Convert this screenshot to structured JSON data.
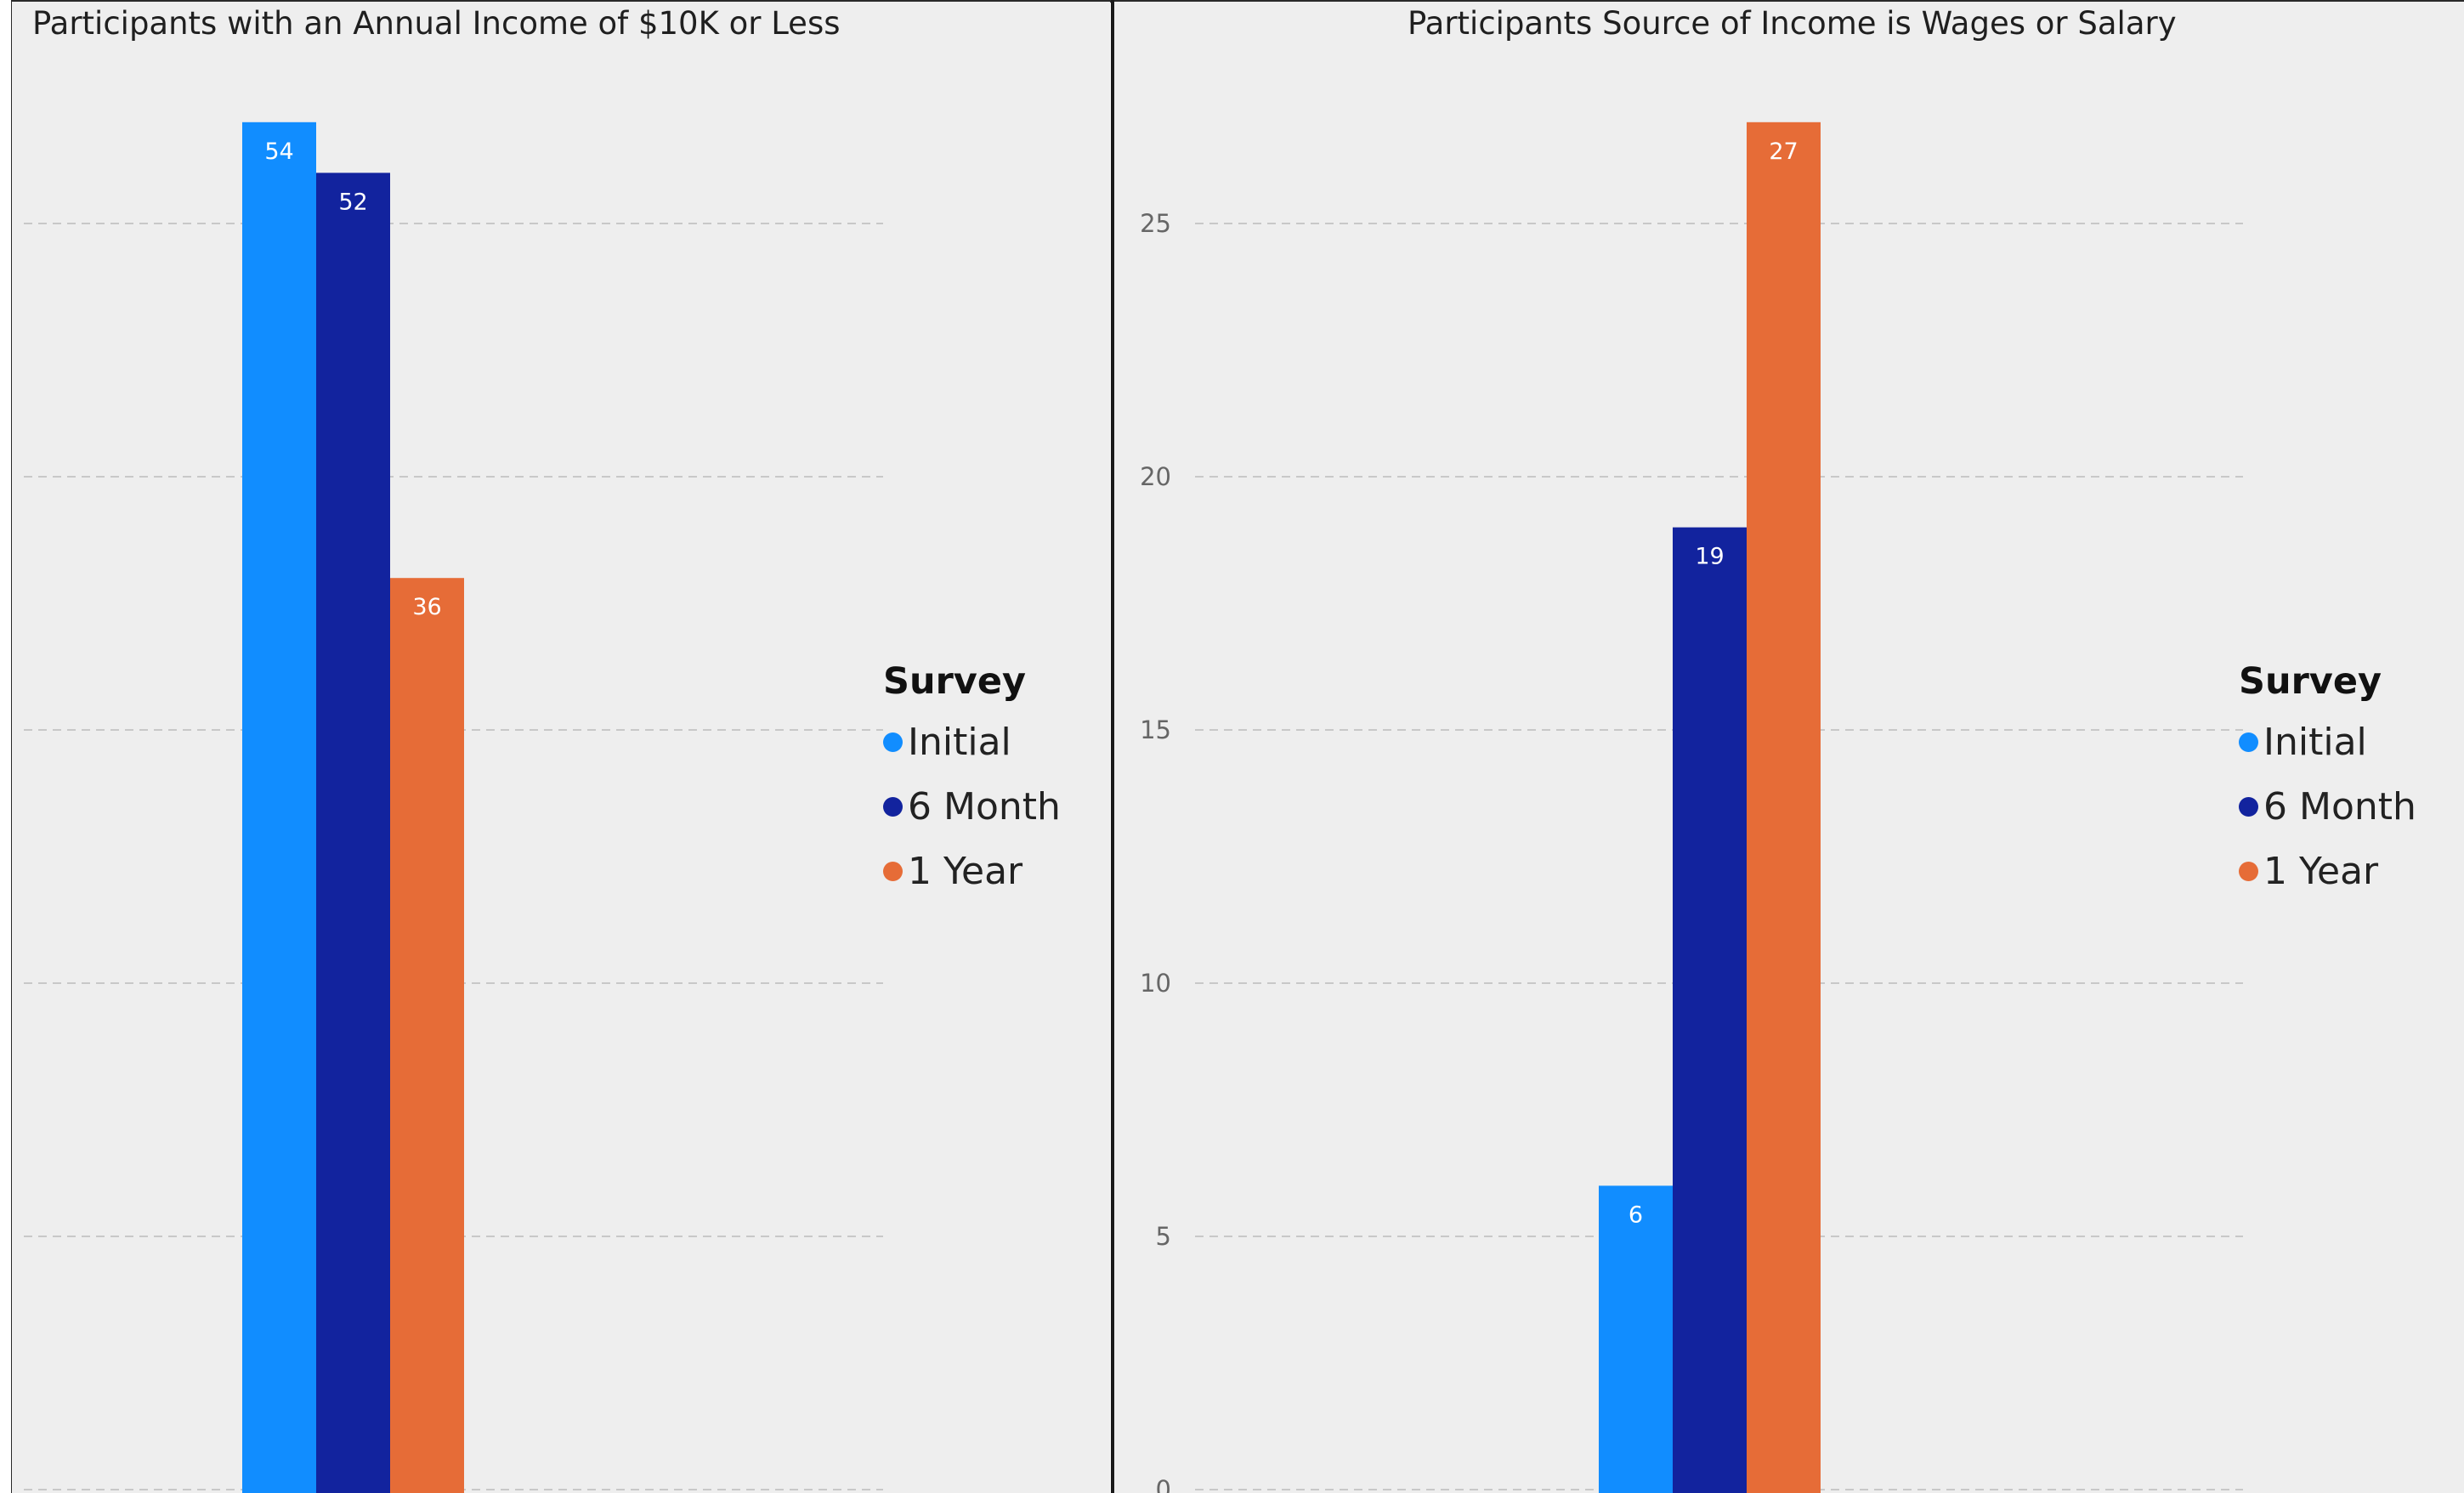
{
  "colors": {
    "initial": "#118dff",
    "six_month": "#12239e",
    "one_year": "#e66c37",
    "grid": "#c8c8c8",
    "panel_bg": "#eeeeee"
  },
  "chart_data": [
    {
      "type": "bar",
      "title": "Participants with an Annual Income of $10K or Less",
      "legend_title": "Survey",
      "legend_position": "right",
      "categories": [
        ""
      ],
      "series": [
        {
          "name": "Initial",
          "values": [
            54
          ]
        },
        {
          "name": "6 Month",
          "values": [
            52
          ]
        },
        {
          "name": "1 Year",
          "values": [
            36
          ]
        }
      ],
      "ylim": [
        0,
        55
      ],
      "yticks": [
        0,
        10,
        20,
        30,
        40,
        50
      ],
      "show_y_tick_labels": false,
      "grid": true,
      "xlabel": "",
      "ylabel": ""
    },
    {
      "type": "bar",
      "title": "Participants Source of Income is Wages or Salary",
      "legend_title": "Survey",
      "legend_position": "right",
      "categories": [
        ""
      ],
      "series": [
        {
          "name": "Initial",
          "values": [
            6
          ]
        },
        {
          "name": "6 Month",
          "values": [
            19
          ]
        },
        {
          "name": "1 Year",
          "values": [
            27
          ]
        }
      ],
      "ylim": [
        0,
        27
      ],
      "yticks": [
        0,
        5,
        10,
        15,
        20,
        25
      ],
      "show_y_tick_labels": true,
      "grid": true,
      "xlabel": "",
      "ylabel": ""
    }
  ]
}
